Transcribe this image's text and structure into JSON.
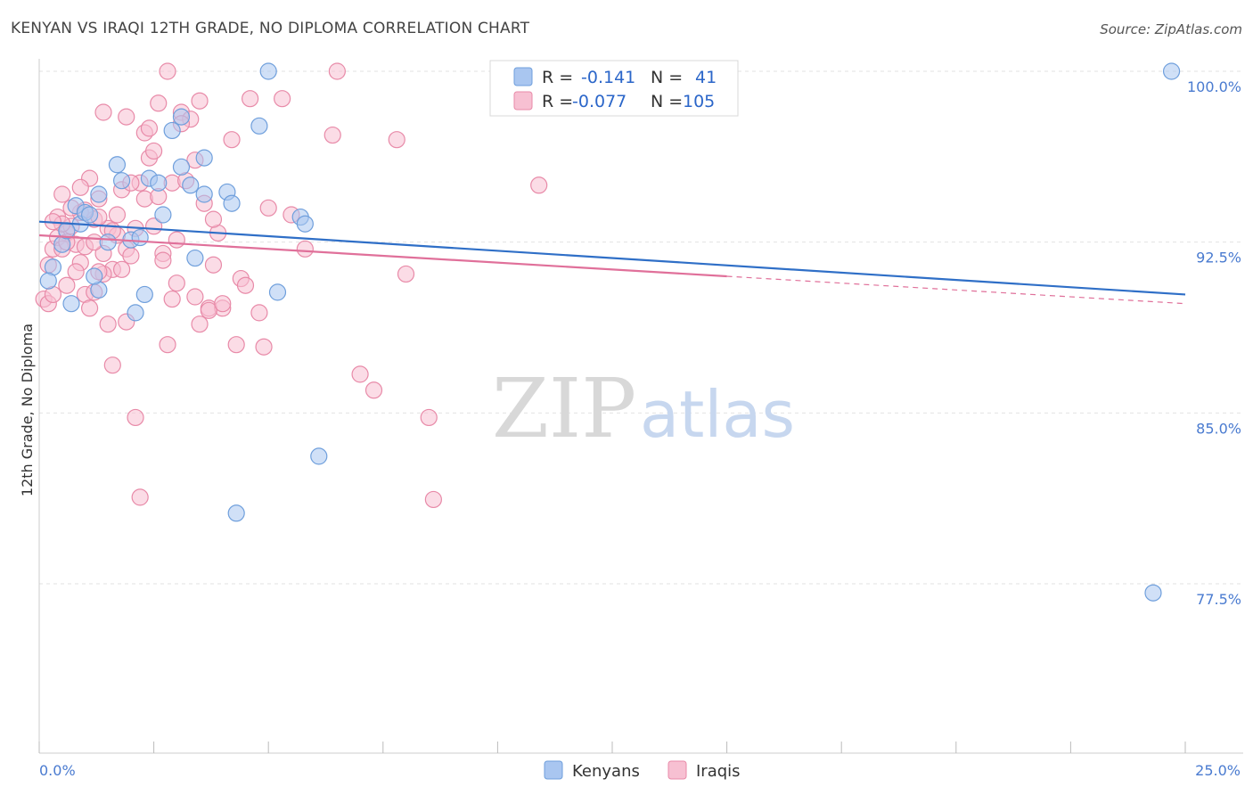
{
  "title": "KENYAN VS IRAQI 12TH GRADE, NO DIPLOMA CORRELATION CHART",
  "source": "Source: ZipAtlas.com",
  "watermark": {
    "zip": "ZIP",
    "atlas": "atlas"
  },
  "colors": {
    "kenyans_fill": "#a9c6f0",
    "kenyans_stroke": "#6f9fdc",
    "kenyans_line": "#2f6fc7",
    "iraqis_fill": "#f7c0d2",
    "iraqis_stroke": "#e88aa8",
    "iraqis_line": "#e0709a",
    "grid": "#e2e2e2",
    "tick": "#4a7bd0"
  },
  "legend": {
    "r_label": "R =",
    "n_label": "N =",
    "kenyans": {
      "r": "-0.141",
      "n": "41"
    },
    "iraqis": {
      "r": "-0.077",
      "n": "105"
    }
  },
  "bottom_legend": [
    "Kenyans",
    "Iraqis"
  ],
  "chart_data": {
    "type": "scatter",
    "title": "KENYAN VS IRAQI 12TH GRADE, NO DIPLOMA CORRELATION CHART",
    "xlabel": "",
    "ylabel": "12th Grade, No Diploma",
    "xlim": [
      0,
      25
    ],
    "ylim": [
      70,
      100.8
    ],
    "x_tick_labels": [
      "0.0%",
      "25.0%"
    ],
    "y_ticks": [
      77.5,
      85.0,
      92.5,
      100.0
    ],
    "y_tick_labels": [
      "77.5%",
      "85.0%",
      "92.5%",
      "100.0%"
    ],
    "series": [
      {
        "name": "Kenyans",
        "r": -0.141,
        "n": 41,
        "trend": {
          "x0": 0,
          "y0": 93.4,
          "x1": 25,
          "y1": 90.2
        },
        "points": [
          [
            0.3,
            91.4
          ],
          [
            0.2,
            90.8
          ],
          [
            0.7,
            89.8
          ],
          [
            0.5,
            92.4
          ],
          [
            0.9,
            93.3
          ],
          [
            0.8,
            94.1
          ],
          [
            1.0,
            93.8
          ],
          [
            1.3,
            94.6
          ],
          [
            1.7,
            95.9
          ],
          [
            1.8,
            95.2
          ],
          [
            1.5,
            92.5
          ],
          [
            1.3,
            90.4
          ],
          [
            2.0,
            92.6
          ],
          [
            2.2,
            92.7
          ],
          [
            2.1,
            89.4
          ],
          [
            2.3,
            90.2
          ],
          [
            2.4,
            95.3
          ],
          [
            2.6,
            95.1
          ],
          [
            2.7,
            93.7
          ],
          [
            2.9,
            97.4
          ],
          [
            3.1,
            95.8
          ],
          [
            3.1,
            98.0
          ],
          [
            3.3,
            95.0
          ],
          [
            3.4,
            91.8
          ],
          [
            3.6,
            94.6
          ],
          [
            3.6,
            96.2
          ],
          [
            4.1,
            94.7
          ],
          [
            4.2,
            94.2
          ],
          [
            4.3,
            80.6
          ],
          [
            4.8,
            97.6
          ],
          [
            5.0,
            100.0
          ],
          [
            5.2,
            90.3
          ],
          [
            5.7,
            93.6
          ],
          [
            5.8,
            93.3
          ],
          [
            6.1,
            83.1
          ],
          [
            10.3,
            100.0
          ],
          [
            24.7,
            100.0
          ],
          [
            24.3,
            77.1
          ],
          [
            1.2,
            91.0
          ],
          [
            0.6,
            93.0
          ],
          [
            1.1,
            93.7
          ]
        ]
      },
      {
        "name": "Iraqis",
        "r": -0.077,
        "n": 105,
        "trend": {
          "x0": 0,
          "y0": 92.8,
          "x1": 15,
          "y1": 91.0
        },
        "trend_dashed": {
          "x0": 15,
          "y0": 91.0,
          "x1": 25,
          "y1": 89.8
        },
        "points": [
          [
            0.1,
            90.0
          ],
          [
            0.2,
            91.5
          ],
          [
            0.3,
            92.2
          ],
          [
            0.4,
            93.6
          ],
          [
            0.5,
            94.6
          ],
          [
            0.6,
            92.9
          ],
          [
            0.7,
            93.2
          ],
          [
            0.8,
            92.4
          ],
          [
            0.9,
            93.8
          ],
          [
            1.0,
            92.3
          ],
          [
            1.1,
            95.3
          ],
          [
            1.2,
            93.5
          ],
          [
            1.3,
            94.4
          ],
          [
            1.4,
            92.0
          ],
          [
            1.5,
            93.1
          ],
          [
            1.6,
            91.3
          ],
          [
            1.7,
            92.8
          ],
          [
            1.8,
            94.8
          ],
          [
            1.9,
            92.2
          ],
          [
            2.0,
            91.9
          ],
          [
            2.1,
            93.1
          ],
          [
            2.2,
            95.1
          ],
          [
            2.3,
            94.4
          ],
          [
            2.4,
            96.2
          ],
          [
            2.5,
            93.2
          ],
          [
            2.6,
            94.5
          ],
          [
            2.7,
            92.0
          ],
          [
            2.8,
            88.0
          ],
          [
            2.9,
            95.1
          ],
          [
            3.0,
            90.7
          ],
          [
            3.1,
            98.2
          ],
          [
            3.2,
            95.2
          ],
          [
            3.3,
            97.9
          ],
          [
            3.4,
            96.1
          ],
          [
            3.5,
            88.9
          ],
          [
            3.6,
            94.2
          ],
          [
            3.7,
            89.6
          ],
          [
            3.8,
            91.5
          ],
          [
            3.9,
            92.9
          ],
          [
            4.0,
            89.6
          ],
          [
            4.2,
            97.0
          ],
          [
            4.4,
            90.9
          ],
          [
            4.6,
            98.8
          ],
          [
            4.8,
            89.4
          ],
          [
            4.9,
            87.9
          ],
          [
            5.0,
            94.0
          ],
          [
            5.3,
            98.8
          ],
          [
            5.5,
            93.7
          ],
          [
            5.8,
            92.2
          ],
          [
            6.4,
            97.2
          ],
          [
            6.5,
            100.0
          ],
          [
            7.0,
            86.7
          ],
          [
            7.3,
            86.0
          ],
          [
            7.8,
            97.0
          ],
          [
            8.0,
            91.1
          ],
          [
            8.5,
            84.8
          ],
          [
            8.6,
            81.2
          ],
          [
            10.9,
            95.0
          ],
          [
            0.2,
            89.8
          ],
          [
            0.3,
            90.2
          ],
          [
            0.4,
            92.7
          ],
          [
            0.5,
            93.3
          ],
          [
            0.6,
            90.6
          ],
          [
            0.9,
            91.6
          ],
          [
            1.0,
            90.2
          ],
          [
            1.1,
            89.6
          ],
          [
            1.2,
            92.5
          ],
          [
            1.3,
            93.6
          ],
          [
            1.4,
            91.1
          ],
          [
            1.5,
            88.9
          ],
          [
            1.6,
            87.1
          ],
          [
            1.7,
            93.7
          ],
          [
            1.8,
            91.3
          ],
          [
            1.9,
            89.0
          ],
          [
            2.1,
            84.8
          ],
          [
            2.2,
            81.3
          ],
          [
            2.3,
            97.3
          ],
          [
            2.4,
            97.5
          ],
          [
            2.6,
            98.6
          ],
          [
            2.8,
            100.0
          ],
          [
            3.1,
            97.7
          ],
          [
            3.5,
            98.7
          ],
          [
            1.4,
            98.2
          ],
          [
            1.9,
            98.0
          ],
          [
            0.7,
            94.0
          ],
          [
            0.8,
            91.2
          ],
          [
            1.2,
            90.3
          ],
          [
            2.0,
            95.1
          ],
          [
            2.5,
            96.5
          ],
          [
            3.0,
            92.6
          ],
          [
            3.4,
            90.1
          ],
          [
            3.7,
            89.5
          ],
          [
            4.0,
            89.8
          ],
          [
            4.3,
            88.0
          ],
          [
            0.5,
            92.2
          ],
          [
            0.9,
            94.9
          ],
          [
            1.3,
            91.2
          ],
          [
            1.6,
            93.0
          ],
          [
            2.7,
            91.7
          ],
          [
            2.9,
            90.0
          ],
          [
            3.8,
            93.5
          ],
          [
            4.5,
            90.6
          ],
          [
            1.0,
            93.9
          ],
          [
            0.3,
            93.4
          ],
          [
            0.6,
            92.5
          ]
        ]
      }
    ]
  }
}
